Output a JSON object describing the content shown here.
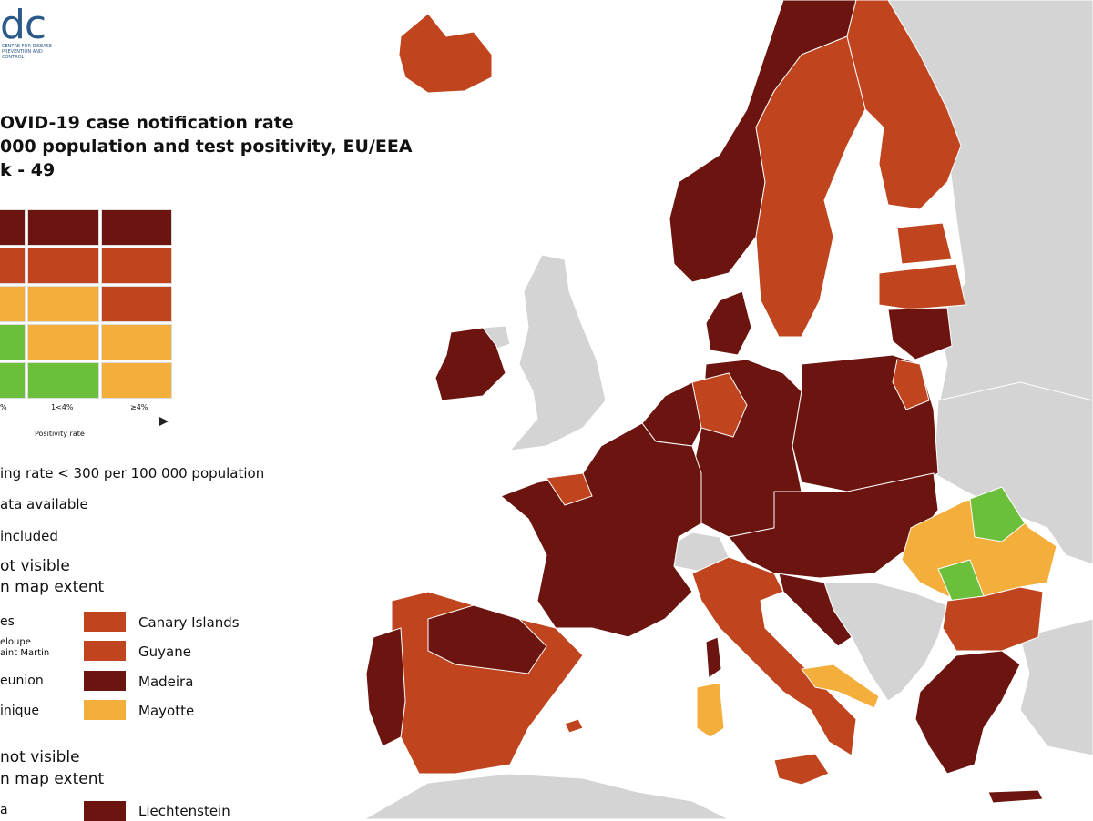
{
  "logo": {
    "text": "dc",
    "subtext": "CENTRE FOR DISEASE PREVENTION AND CONTROL"
  },
  "title": {
    "line1": "OVID-19 case notification rate",
    "line2": "000 population and test positivity, EU/EEA",
    "line3": "k - 49"
  },
  "colors": {
    "dark_red": "#6b1410",
    "red": "#c0451e",
    "orange": "#f3ae3b",
    "green": "#6cbf3b",
    "grey": "#d4d4d4",
    "sea": "#ffffff"
  },
  "legend": {
    "grid": [
      [
        "dark_red",
        "dark_red",
        "dark_red"
      ],
      [
        "red",
        "red",
        "red"
      ],
      [
        "orange",
        "orange",
        "red"
      ],
      [
        "green",
        "orange",
        "orange"
      ],
      [
        "green",
        "green",
        "orange"
      ]
    ],
    "columns": [
      "%",
      "1<4%",
      "≥4%"
    ],
    "axis_label": "Positivity rate"
  },
  "notes": {
    "testing": "ing rate < 300 per 100 000 population",
    "no_data": "ata available",
    "not_included": "included"
  },
  "regions_not_visible": {
    "heading1": "ot visible",
    "heading2": "n map extent",
    "left_items": [
      "es",
      "eloupe",
      "aint Martin",
      "eunion",
      "inique"
    ],
    "right_items": [
      {
        "label": "Canary Islands",
        "color": "#c0451e"
      },
      {
        "label": "Guyane",
        "color": "#c0451e"
      },
      {
        "label": "Madeira",
        "color": "#6b1410"
      },
      {
        "label": "Mayotte",
        "color": "#f3ae3b"
      }
    ]
  },
  "countries_not_visible": {
    "heading1": "not visible",
    "heading2": "n map extent",
    "left_item": "a",
    "right_items": [
      {
        "label": "Liechtenstein",
        "color": "#6b1410"
      }
    ]
  }
}
